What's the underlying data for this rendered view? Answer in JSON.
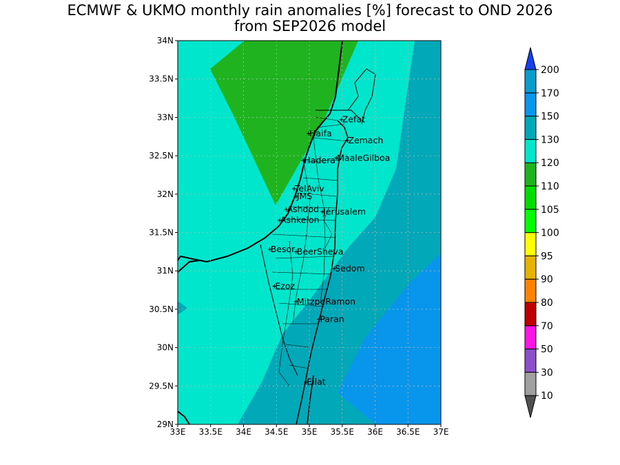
{
  "title": {
    "line1": "ECMWF & UKMO monthly rain anomalies [%] forecast to OND 2026",
    "line2": "from SEP2026 model"
  },
  "map": {
    "lon_range": [
      33,
      37
    ],
    "lat_range": [
      29,
      34
    ],
    "x_ticks": [
      "33E",
      "33.5E",
      "34E",
      "34.5E",
      "35E",
      "35.5E",
      "36E",
      "36.5E",
      "37E"
    ],
    "y_ticks": [
      "29N",
      "29.5N",
      "30N",
      "30.5N",
      "31N",
      "31.5N",
      "32N",
      "32.5N",
      "33N",
      "33.5N",
      "34N"
    ],
    "grid": true,
    "colors": {
      "band_110_120": "#1fb41f",
      "band_120_130": "#00e6cc",
      "band_130_150": "#00a8b8",
      "band_150_170": "#0896ec"
    },
    "cities": [
      {
        "name": "Zefat",
        "lon": 35.49,
        "lat": 32.97
      },
      {
        "name": "Haifa",
        "lon": 34.99,
        "lat": 32.79
      },
      {
        "name": "Zemach",
        "lon": 35.58,
        "lat": 32.7
      },
      {
        "name": "Hadera",
        "lon": 34.91,
        "lat": 32.44
      },
      {
        "name": "MaaleGilboa",
        "lon": 35.41,
        "lat": 32.47
      },
      {
        "name": "TelAviv",
        "lon": 34.77,
        "lat": 32.07
      },
      {
        "name": "JMS",
        "lon": 34.8,
        "lat": 31.97
      },
      {
        "name": "Ashdod",
        "lon": 34.65,
        "lat": 31.8
      },
      {
        "name": "Jerusalem",
        "lon": 35.2,
        "lat": 31.77
      },
      {
        "name": "Ashkelon",
        "lon": 34.55,
        "lat": 31.66
      },
      {
        "name": "Besor",
        "lon": 34.4,
        "lat": 31.28
      },
      {
        "name": "BeerSheva",
        "lon": 34.8,
        "lat": 31.25
      },
      {
        "name": "Sedom",
        "lon": 35.38,
        "lat": 31.03
      },
      {
        "name": "Ezoz",
        "lon": 34.47,
        "lat": 30.8
      },
      {
        "name": "MitzpeRamon",
        "lon": 34.8,
        "lat": 30.6
      },
      {
        "name": "Paran",
        "lon": 35.15,
        "lat": 30.37
      },
      {
        "name": "Eilat",
        "lon": 34.95,
        "lat": 29.55
      }
    ]
  },
  "colorbar": {
    "levels": [
      "10",
      "30",
      "50",
      "70",
      "80",
      "90",
      "95",
      "100",
      "105",
      "110",
      "120",
      "130",
      "150",
      "170",
      "200"
    ],
    "colors": [
      "#a0a0a0",
      "#8c50c8",
      "#ff14e6",
      "#c00000",
      "#ff8200",
      "#e6b400",
      "#ffff00",
      "#00ff00",
      "#00dc00",
      "#1fb41f",
      "#00e6cc",
      "#00a8b8",
      "#0896ec",
      "#0a9ccc",
      "#1440f0"
    ],
    "end_low_color": "#505050",
    "end_high_color": "#1440f0"
  }
}
